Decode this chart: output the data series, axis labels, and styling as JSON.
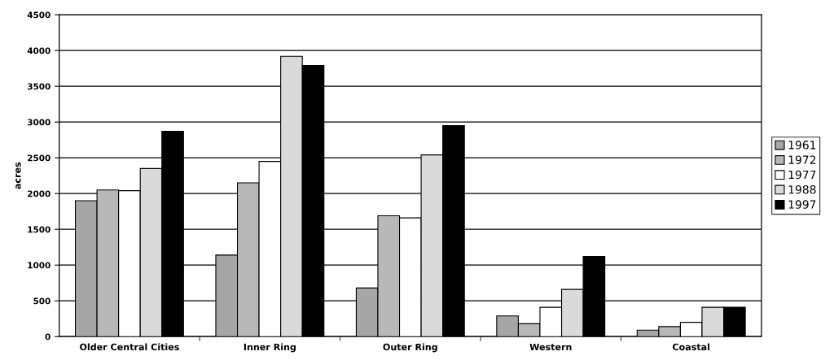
{
  "chart_data": {
    "type": "bar",
    "ylabel": "acres",
    "categories": [
      "Older Central Cities",
      "Inner Ring",
      "Outer Ring",
      "Western",
      "Coastal"
    ],
    "series": [
      {
        "name": "1961",
        "color": "#a6a6a6",
        "values": [
          1900,
          1140,
          680,
          290,
          90
        ]
      },
      {
        "name": "1972",
        "color": "#b8b8b8",
        "values": [
          2050,
          2150,
          1690,
          180,
          140
        ]
      },
      {
        "name": "1977",
        "color": "#ffffff",
        "values": [
          2040,
          2450,
          1660,
          410,
          200
        ]
      },
      {
        "name": "1988",
        "color": "#dadada",
        "values": [
          2350,
          3920,
          2540,
          660,
          410
        ]
      },
      {
        "name": "1997",
        "color": "#000000",
        "values": [
          2870,
          3790,
          2950,
          1120,
          410
        ]
      }
    ],
    "ylim": [
      0,
      4500
    ],
    "yticks": [
      0,
      500,
      1000,
      1500,
      2000,
      2500,
      3000,
      3500,
      4000,
      4500
    ],
    "grid": "y",
    "legend": "right"
  }
}
